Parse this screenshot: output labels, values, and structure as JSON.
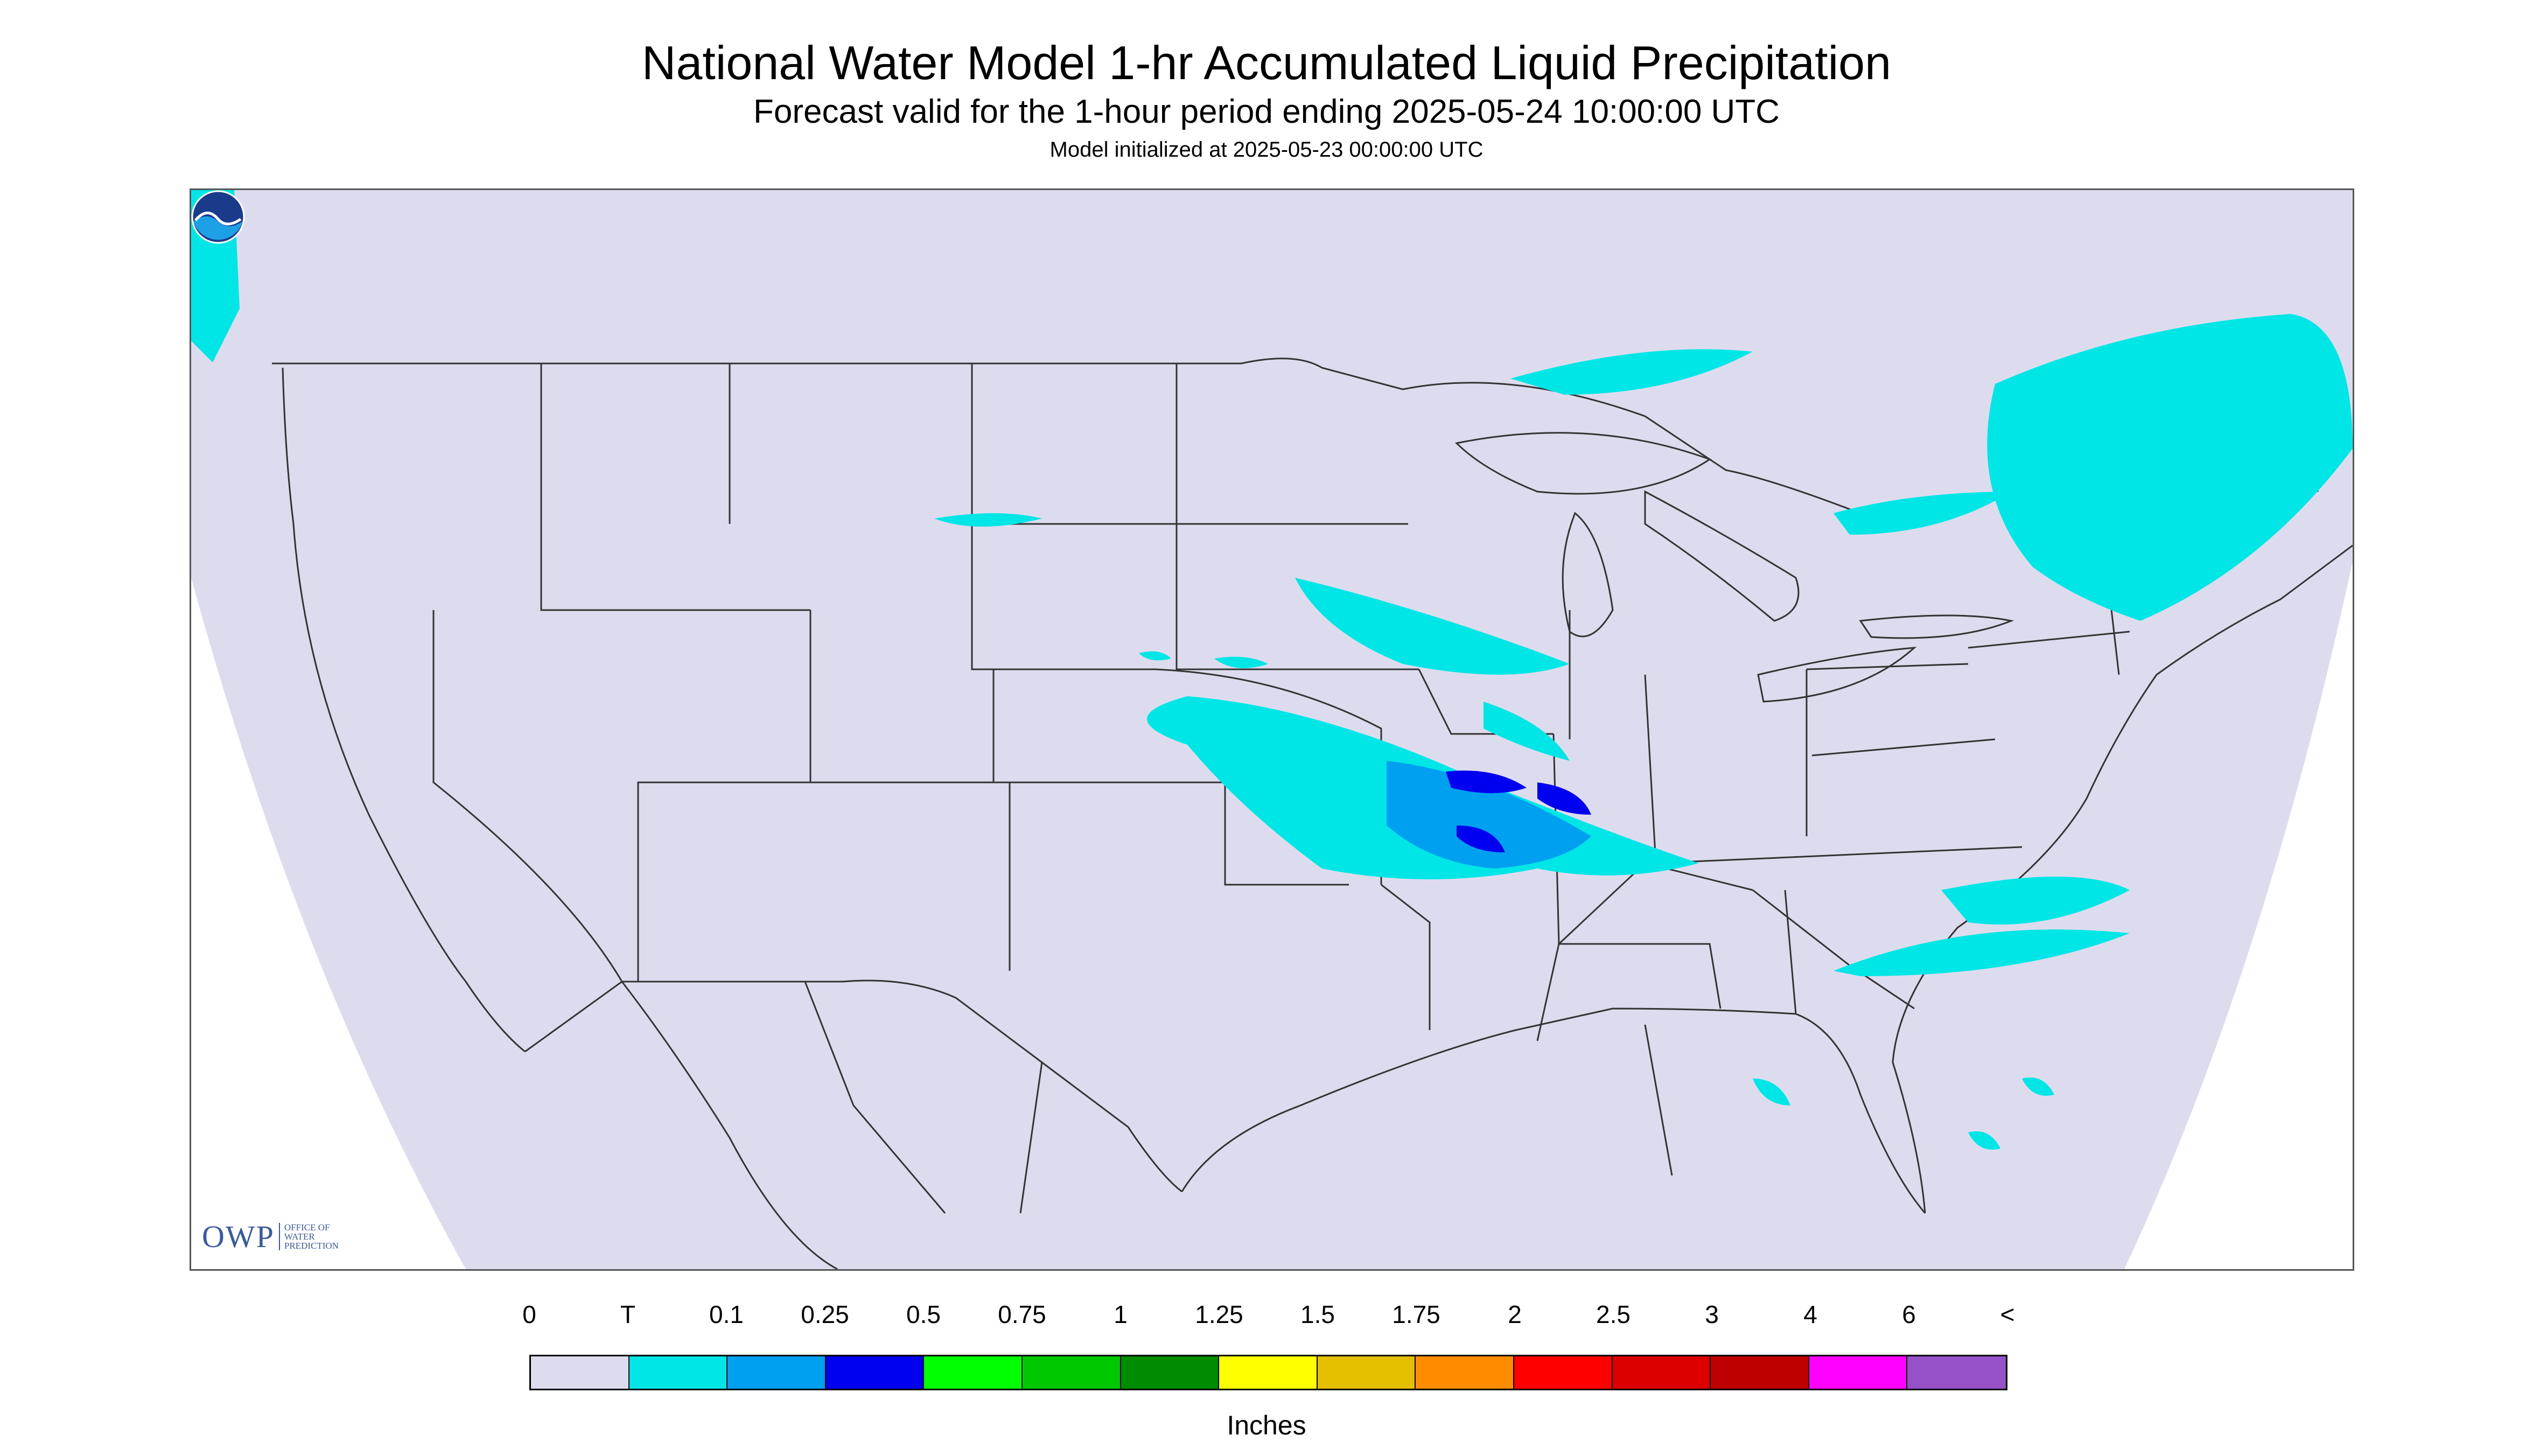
{
  "header": {
    "title": "National Water Model 1-hr Accumulated Liquid Precipitation",
    "subtitle": "Forecast valid for the 1-hour period ending 2025-05-24 10:00:00 UTC",
    "init": "Model initialized at 2025-05-23 00:00:00 UTC"
  },
  "map": {
    "background_color": "#dcdcee",
    "outside_color": "#ffffff",
    "boundary_color": "#333333",
    "owp_logo": {
      "main": "OWP",
      "sub": "OFFICE OF\nWATER\nPREDICTION"
    },
    "noaa_logo_icon": "noaa-logo",
    "precip_features": [
      {
        "region": "Oklahoma / Kansas / Missouri / Arkansas band",
        "max_category": "0.5"
      },
      {
        "region": "Iowa / Illinois",
        "max_category": "T"
      },
      {
        "region": "New England / Quebec / Ontario",
        "max_category": "T"
      },
      {
        "region": "Carolinas offshore",
        "max_category": "T"
      },
      {
        "region": "Gulf of Mexico scattered",
        "max_category": "T"
      },
      {
        "region": "Pacific Northwest",
        "max_category": "T"
      }
    ]
  },
  "legend": {
    "labels": [
      "0",
      "T",
      "0.1",
      "0.25",
      "0.5",
      "0.75",
      "1",
      "1.25",
      "1.5",
      "1.75",
      "2",
      "2.5",
      "3",
      "4",
      "6",
      "<"
    ],
    "colors": [
      "#dcdcee",
      "#00e6e6",
      "#00a0f0",
      "#0000f0",
      "#00ff00",
      "#00c800",
      "#008c00",
      "#ffff00",
      "#e6be00",
      "#ff8c00",
      "#ff0000",
      "#dc0000",
      "#be0000",
      "#ff00ff",
      "#9650c8"
    ],
    "units": "Inches"
  }
}
